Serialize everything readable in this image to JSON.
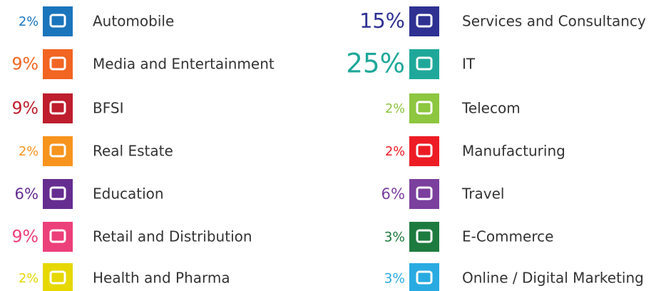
{
  "chart_data": {
    "type": "icon-list",
    "categories": [
      "Automobile",
      "Media and Entertainment",
      "BFSI",
      "Real Estate",
      "Education",
      "Retail and Distribution",
      "Health and Pharma",
      "Services and Consultancy",
      "IT",
      "Telecom",
      "Manufacturing",
      "Travel",
      "E-Commerce",
      "Online / Digital Marketing"
    ],
    "values": [
      2,
      9,
      9,
      2,
      6,
      9,
      2,
      15,
      25,
      2,
      2,
      6,
      3,
      3
    ],
    "value_labels": [
      "2%",
      "9%",
      "9%",
      "2%",
      "6%",
      "9%",
      "2%",
      "15%",
      "25%",
      "2%",
      "2%",
      "6%",
      "3%",
      "3%"
    ],
    "colors": [
      "#1b75bc",
      "#f26522",
      "#be1e2d",
      "#f7941d",
      "#662d91",
      "#ec407a",
      "#e6d800",
      "#2e3192",
      "#1fa89a",
      "#8dc63f",
      "#ed1c24",
      "#7b3f9e",
      "#1e7b3f",
      "#29abe2"
    ]
  }
}
